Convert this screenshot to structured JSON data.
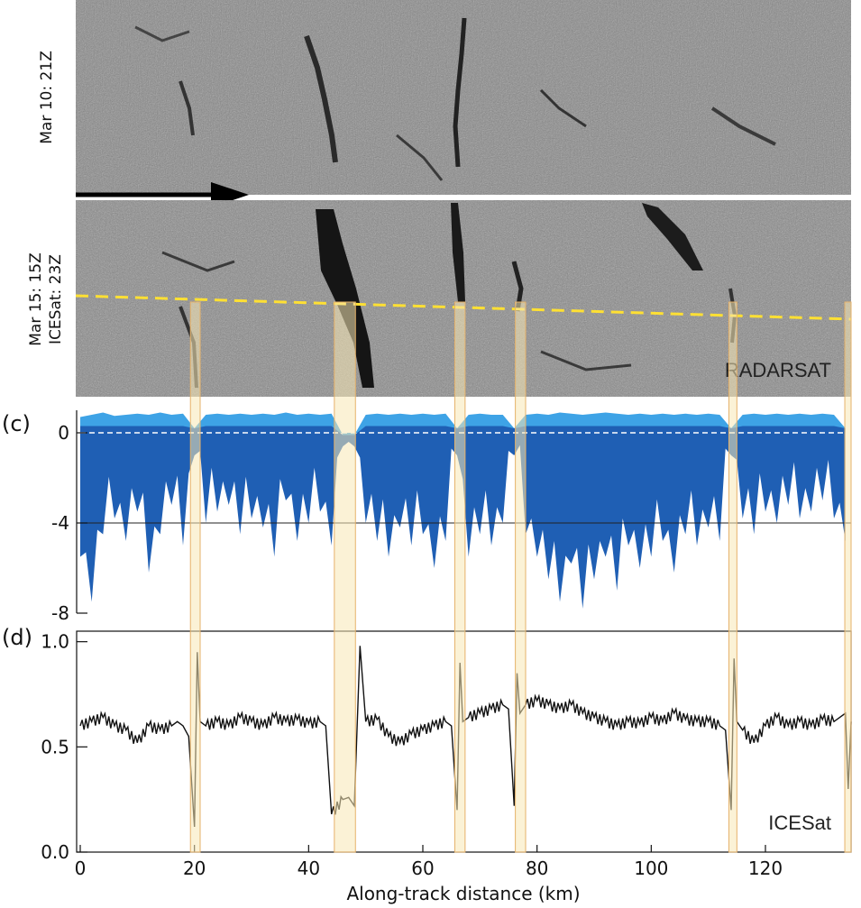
{
  "figure": {
    "panel_a": {
      "label": "Mar 10: 21Z"
    },
    "panel_b": {
      "label_line1": "Mar 15: 15Z",
      "label_line2": "ICESat: 23Z",
      "source": "RADARSAT"
    },
    "panel_c": {
      "letter": "(c)"
    },
    "panel_d": {
      "letter": "(d)",
      "source": "ICESat"
    },
    "x_axis": {
      "title": "Along-track distance (km)"
    }
  },
  "colors": {
    "highlight_fill": "#f7e7b4",
    "highlight_edge": "#e6b26a",
    "track_line": "#ffe033",
    "elevation_dark": "#1f5fb4",
    "elevation_light": "#3ea3e6",
    "image_gray": "#8a8a8a"
  },
  "chart_data": [
    {
      "type": "area",
      "panel": "(c)",
      "x_range": [
        0,
        135
      ],
      "ylim": [
        -8,
        1
      ],
      "y_ticks": [
        0,
        -4,
        -8
      ],
      "reference_lines": [
        0,
        -4
      ],
      "x": [
        0,
        2,
        4,
        6,
        8,
        10,
        12,
        14,
        16,
        18,
        20,
        22,
        24,
        26,
        28,
        30,
        32,
        34,
        36,
        38,
        40,
        42,
        44,
        46,
        48,
        50,
        52,
        54,
        56,
        58,
        60,
        62,
        64,
        66,
        68,
        70,
        72,
        74,
        76,
        78,
        80,
        82,
        84,
        86,
        88,
        90,
        92,
        94,
        96,
        98,
        100,
        102,
        104,
        106,
        108,
        110,
        112,
        114,
        116,
        118,
        120,
        122,
        124,
        126,
        128,
        130,
        132,
        134
      ],
      "series": [
        {
          "values": [
            0.7,
            0.8,
            0.9,
            0.75,
            0.8,
            0.85,
            0.8,
            0.9,
            0.8,
            0.85,
            0.2,
            0.8,
            0.85,
            0.8,
            0.85,
            0.8,
            0.85,
            0.8,
            0.9,
            0.8,
            0.85,
            0.8,
            0.85,
            -0.1,
            -0.1,
            0.8,
            0.85,
            0.8,
            0.85,
            0.8,
            0.85,
            0.8,
            0.85,
            0.2,
            0.8,
            0.85,
            0.8,
            0.8,
            0.2,
            0.8,
            0.85,
            0.8,
            0.9,
            0.85,
            0.8,
            0.85,
            0.9,
            0.85,
            0.8,
            0.85,
            0.8,
            0.85,
            0.8,
            0.85,
            0.8,
            0.85,
            0.8,
            0.2,
            0.8,
            0.85,
            0.8,
            0.85,
            0.8,
            0.85,
            0.8,
            0.85,
            0.8,
            0.2
          ]
        },
        {
          "values": [
            -5.5,
            -7.5,
            -4.5,
            -3.8,
            -4.8,
            -3.5,
            -6.2,
            -4.5,
            -3.2,
            -5.0,
            -1.0,
            -4.0,
            -3.5,
            -3.2,
            -4.5,
            -3.8,
            -4.2,
            -5.5,
            -3.0,
            -4.8,
            -4.0,
            -3.5,
            -5.0,
            -0.6,
            -0.6,
            -4.0,
            -4.8,
            -5.5,
            -4.2,
            -5.0,
            -4.5,
            -6.0,
            -4.8,
            -1.0,
            -5.5,
            -4.5,
            -5.0,
            -4.0,
            -1.0,
            -4.5,
            -5.5,
            -6.5,
            -7.5,
            -5.8,
            -7.8,
            -6.5,
            -5.5,
            -7.0,
            -5.0,
            -6.0,
            -5.5,
            -4.8,
            -6.2,
            -4.5,
            -5.0,
            -4.2,
            -4.8,
            -1.0,
            -3.8,
            -4.5,
            -3.5,
            -4.0,
            -3.2,
            -3.8,
            -3.5,
            -3.0,
            -3.8,
            -4.8
          ]
        }
      ]
    },
    {
      "type": "line",
      "panel": "(d)",
      "x_range": [
        0,
        135
      ],
      "xlabel": "Along-track distance (km)",
      "x_ticks": [
        0,
        20,
        40,
        60,
        80,
        100,
        120
      ],
      "ylim": [
        0,
        1.05
      ],
      "y_ticks": [
        0.0,
        0.5,
        1.0
      ],
      "x": [
        0,
        2,
        4,
        6,
        8,
        10,
        12,
        14,
        16,
        17,
        18,
        19,
        20,
        20.5,
        21,
        22,
        24,
        26,
        28,
        30,
        32,
        34,
        36,
        38,
        40,
        42,
        43,
        44,
        46,
        47,
        48,
        49,
        50,
        52,
        54,
        56,
        58,
        60,
        62,
        64,
        65,
        66,
        66.5,
        67,
        68,
        70,
        72,
        74,
        75,
        76,
        76.5,
        77,
        78,
        80,
        82,
        84,
        86,
        88,
        90,
        92,
        94,
        96,
        98,
        100,
        102,
        104,
        106,
        108,
        110,
        112,
        113,
        114,
        114.5,
        115,
        116,
        118,
        120,
        122,
        124,
        126,
        128,
        130,
        132,
        133,
        134,
        134.5,
        135
      ],
      "series": [
        {
          "values": [
            0.6,
            0.62,
            0.64,
            0.6,
            0.58,
            0.52,
            0.6,
            0.58,
            0.6,
            0.62,
            0.6,
            0.55,
            0.12,
            0.95,
            0.62,
            0.6,
            0.62,
            0.6,
            0.64,
            0.62,
            0.6,
            0.64,
            0.62,
            0.63,
            0.61,
            0.62,
            0.6,
            0.18,
            0.25,
            0.26,
            0.22,
            0.98,
            0.62,
            0.63,
            0.55,
            0.52,
            0.56,
            0.58,
            0.6,
            0.62,
            0.6,
            0.2,
            0.9,
            0.62,
            0.64,
            0.66,
            0.68,
            0.7,
            0.68,
            0.22,
            0.85,
            0.66,
            0.7,
            0.72,
            0.7,
            0.68,
            0.7,
            0.66,
            0.64,
            0.62,
            0.6,
            0.62,
            0.61,
            0.64,
            0.62,
            0.66,
            0.63,
            0.62,
            0.62,
            0.6,
            0.58,
            0.2,
            0.92,
            0.62,
            0.58,
            0.52,
            0.6,
            0.64,
            0.6,
            0.62,
            0.6,
            0.63,
            0.62,
            0.64,
            0.66,
            0.3,
            0.62
          ]
        }
      ]
    }
  ],
  "leads_km": [
    [
      19.3,
      21.0
    ],
    [
      44.5,
      48.2
    ],
    [
      65.6,
      67.4
    ],
    [
      76.2,
      78.0
    ],
    [
      113.6,
      115.0
    ],
    [
      133.9,
      135.0
    ]
  ]
}
